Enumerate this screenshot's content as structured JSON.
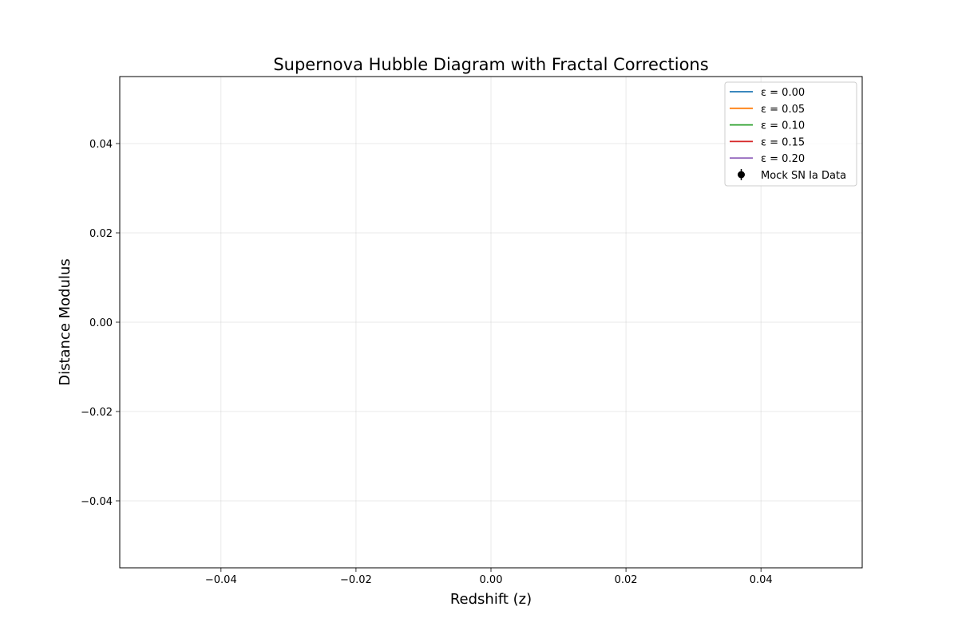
{
  "chart_data": {
    "type": "line",
    "title": "Supernova Hubble Diagram with Fractal Corrections",
    "xlabel": "Redshift (z)",
    "ylabel": "Distance Modulus",
    "xlim": [
      -0.055,
      0.055
    ],
    "ylim": [
      -0.055,
      0.055
    ],
    "xticks": [
      -0.04,
      -0.02,
      0.0,
      0.02,
      0.04
    ],
    "yticks": [
      -0.04,
      -0.02,
      0.0,
      0.02,
      0.04
    ],
    "xtick_labels": [
      "−0.04",
      "−0.02",
      "0.00",
      "0.02",
      "0.04"
    ],
    "ytick_labels": [
      "−0.04",
      "−0.02",
      "0.00",
      "0.02",
      "0.04"
    ],
    "grid": true,
    "legend_position": "upper right",
    "series": [
      {
        "name": "ε = 0.00",
        "color": "#1f77b4",
        "x": [],
        "y": []
      },
      {
        "name": "ε = 0.05",
        "color": "#ff7f0e",
        "x": [],
        "y": []
      },
      {
        "name": "ε = 0.10",
        "color": "#2ca02c",
        "x": [],
        "y": []
      },
      {
        "name": "ε = 0.15",
        "color": "#d62728",
        "x": [],
        "y": []
      },
      {
        "name": "ε = 0.20",
        "color": "#9467bd",
        "x": [],
        "y": []
      }
    ],
    "data_series": {
      "name": "Mock SN Ia Data",
      "color": "#000000",
      "marker": "errorbar-point",
      "x": [],
      "y": [],
      "yerr": []
    }
  }
}
